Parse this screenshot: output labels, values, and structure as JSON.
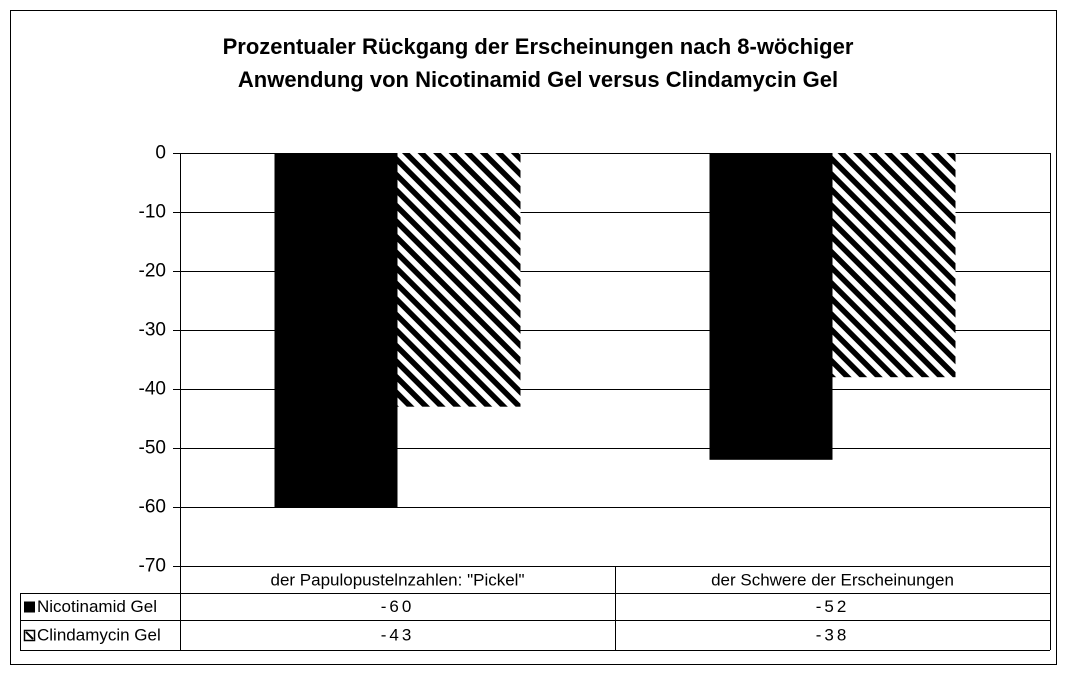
{
  "chart_data": {
    "type": "bar",
    "title": "Prozentualer Rückgang der Erscheinungen nach 8-wöchiger Anwendung von Nicotinamid Gel versus Clindamycin Gel",
    "categories": [
      "der Papulopustelnzahlen:  \"Pickel\"",
      "der Schwere der Erscheinungen"
    ],
    "series": [
      {
        "name": "Nicotinamid Gel",
        "color": "#000000",
        "pattern": "solid",
        "values": [
          -60,
          -52
        ]
      },
      {
        "name": "Clindamycin Gel",
        "color": "#000000",
        "pattern": "hatched",
        "values": [
          -43,
          -38
        ]
      }
    ],
    "ylim": [
      -70,
      0
    ],
    "yticks": [
      0,
      -10,
      -20,
      -30,
      -40,
      -50,
      -60,
      -70
    ],
    "grid": true,
    "data_table": true
  }
}
